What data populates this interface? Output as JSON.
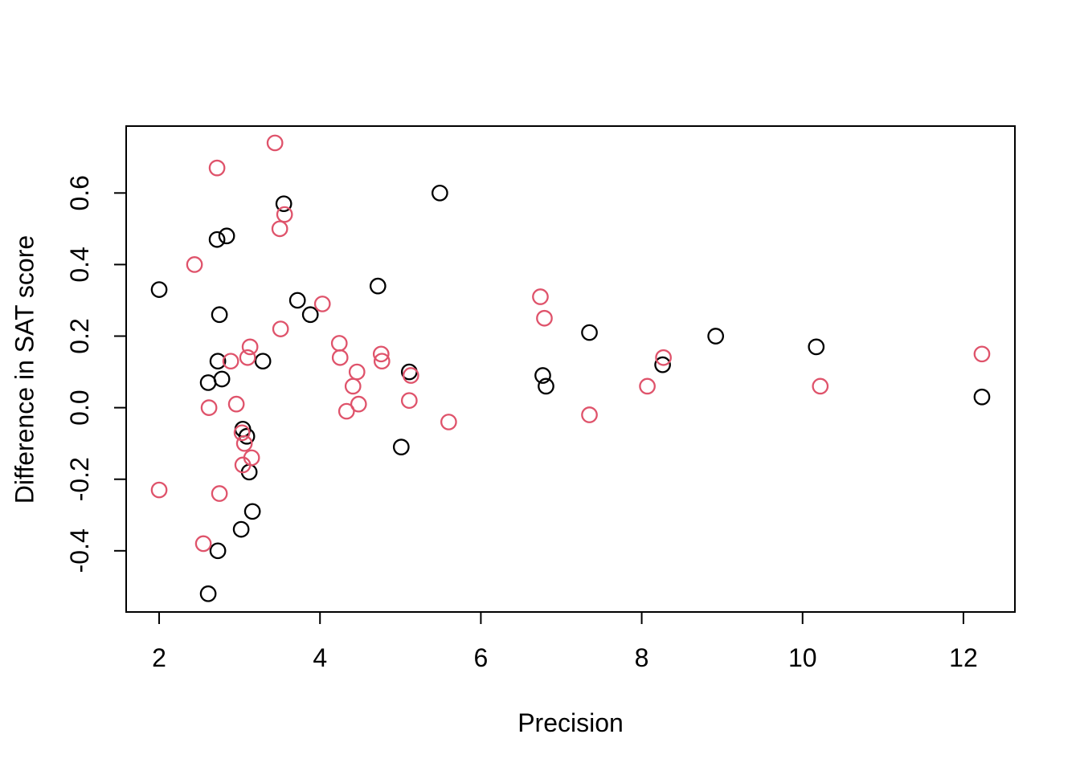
{
  "chart_data": {
    "type": "scatter",
    "title": "",
    "xlabel": "Precision",
    "ylabel": "Difference in SAT score",
    "xlim": [
      1.59,
      12.64
    ],
    "ylim": [
      -0.571,
      0.787
    ],
    "xticks": [
      2,
      4,
      6,
      8,
      10,
      12
    ],
    "xtick_labels": [
      "2",
      "4",
      "6",
      "8",
      "10",
      "12"
    ],
    "yticks": [
      -0.4,
      -0.2,
      0.0,
      0.2,
      0.4,
      0.6
    ],
    "ytick_labels": [
      "-0.4",
      "-0.2",
      "0.0",
      "0.2",
      "0.4",
      "0.6"
    ],
    "grid": false,
    "legend": null,
    "marker": "open-circle",
    "frame_color": "#000000",
    "series": [
      {
        "name": "black",
        "color": "#000000",
        "points": [
          [
            2.0,
            0.33
          ],
          [
            2.61,
            -0.52
          ],
          [
            2.61,
            0.07
          ],
          [
            2.78,
            0.08
          ],
          [
            2.72,
            0.47
          ],
          [
            2.84,
            0.48
          ],
          [
            2.75,
            0.26
          ],
          [
            2.73,
            0.13
          ],
          [
            2.73,
            -0.4
          ],
          [
            3.02,
            -0.34
          ],
          [
            3.04,
            -0.06
          ],
          [
            3.09,
            -0.08
          ],
          [
            3.12,
            -0.18
          ],
          [
            3.16,
            -0.29
          ],
          [
            3.29,
            0.13
          ],
          [
            3.55,
            0.57
          ],
          [
            3.72,
            0.3
          ],
          [
            3.88,
            0.26
          ],
          [
            4.72,
            0.34
          ],
          [
            5.01,
            -0.11
          ],
          [
            5.11,
            0.1
          ],
          [
            5.49,
            0.6
          ],
          [
            6.77,
            0.09
          ],
          [
            6.81,
            0.06
          ],
          [
            7.35,
            0.21
          ],
          [
            8.26,
            0.12
          ],
          [
            8.92,
            0.2
          ],
          [
            10.17,
            0.17
          ],
          [
            12.23,
            0.03
          ]
        ]
      },
      {
        "name": "pink",
        "color": "#DF536B",
        "points": [
          [
            2.0,
            -0.23
          ],
          [
            2.44,
            0.4
          ],
          [
            2.55,
            -0.38
          ],
          [
            2.62,
            0.0
          ],
          [
            2.72,
            0.67
          ],
          [
            2.75,
            -0.24
          ],
          [
            2.89,
            0.13
          ],
          [
            2.96,
            0.01
          ],
          [
            3.03,
            -0.07
          ],
          [
            3.04,
            -0.16
          ],
          [
            3.06,
            -0.1
          ],
          [
            3.1,
            0.14
          ],
          [
            3.13,
            0.17
          ],
          [
            3.15,
            -0.14
          ],
          [
            3.44,
            0.74
          ],
          [
            3.5,
            0.5
          ],
          [
            3.51,
            0.22
          ],
          [
            3.56,
            0.54
          ],
          [
            4.03,
            0.29
          ],
          [
            4.24,
            0.18
          ],
          [
            4.25,
            0.14
          ],
          [
            4.33,
            -0.01
          ],
          [
            4.41,
            0.06
          ],
          [
            4.46,
            0.1
          ],
          [
            4.48,
            0.01
          ],
          [
            4.76,
            0.15
          ],
          [
            4.77,
            0.13
          ],
          [
            5.11,
            0.02
          ],
          [
            5.13,
            0.09
          ],
          [
            5.6,
            -0.04
          ],
          [
            6.74,
            0.31
          ],
          [
            6.79,
            0.25
          ],
          [
            7.35,
            -0.02
          ],
          [
            8.07,
            0.06
          ],
          [
            8.27,
            0.14
          ],
          [
            10.22,
            0.06
          ],
          [
            12.23,
            0.15
          ]
        ]
      }
    ]
  }
}
